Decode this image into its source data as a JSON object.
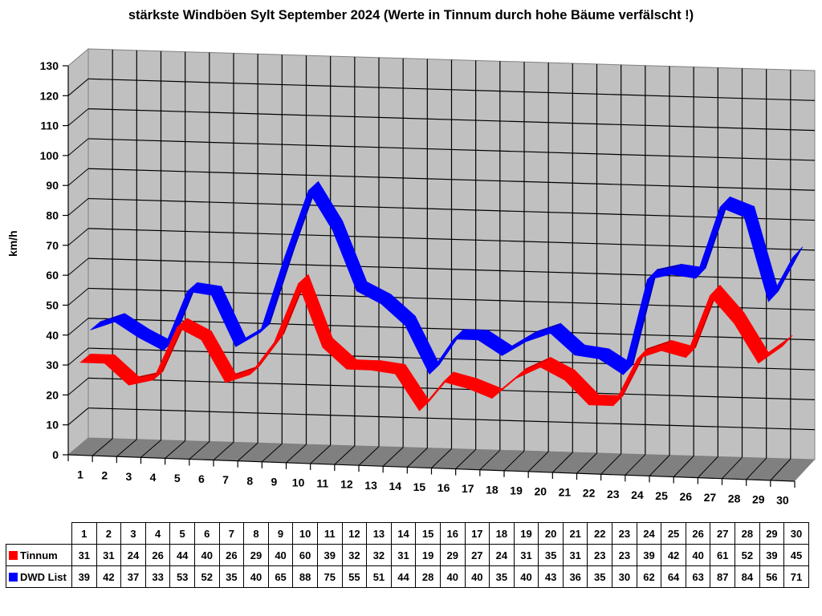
{
  "chart_data": {
    "type": "line",
    "style": "3d-ribbon",
    "title": "stärkste Windböen Sylt September 2024 (Werte in Tinnum durch hohe Bäume verfälscht !)",
    "xlabel": "",
    "ylabel": "km/h",
    "ylim": [
      0,
      130
    ],
    "yticks": [
      0,
      10,
      20,
      30,
      40,
      50,
      60,
      70,
      80,
      90,
      100,
      110,
      120,
      130
    ],
    "grid": true,
    "legend_position": "data-table-bottom",
    "categories": [
      "1",
      "2",
      "3",
      "4",
      "5",
      "6",
      "7",
      "8",
      "9",
      "10",
      "11",
      "12",
      "13",
      "14",
      "15",
      "16",
      "17",
      "18",
      "19",
      "20",
      "21",
      "22",
      "23",
      "24",
      "25",
      "26",
      "27",
      "28",
      "29",
      "30"
    ],
    "series": [
      {
        "name": "Tinnum",
        "color": "#ff0000",
        "values": [
          31,
          31,
          24,
          26,
          44,
          40,
          26,
          29,
          40,
          60,
          39,
          32,
          32,
          31,
          19,
          29,
          27,
          24,
          31,
          35,
          31,
          23,
          23,
          39,
          42,
          40,
          61,
          52,
          39,
          45
        ]
      },
      {
        "name": "DWD List",
        "color": "#0000ff",
        "values": [
          39,
          42,
          37,
          33,
          53,
          52,
          35,
          40,
          65,
          88,
          75,
          55,
          51,
          44,
          28,
          40,
          40,
          35,
          40,
          43,
          36,
          35,
          30,
          62,
          64,
          63,
          87,
          84,
          56,
          71
        ]
      }
    ]
  },
  "table": {
    "header": [
      "1",
      "2",
      "3",
      "4",
      "5",
      "6",
      "7",
      "8",
      "9",
      "10",
      "11",
      "12",
      "13",
      "14",
      "15",
      "16",
      "17",
      "18",
      "19",
      "20",
      "21",
      "22",
      "23",
      "24",
      "25",
      "26",
      "27",
      "28",
      "29",
      "30"
    ]
  },
  "colors": {
    "wall": "#c0c0c0",
    "floor": "#808080",
    "grid": "#000000"
  }
}
